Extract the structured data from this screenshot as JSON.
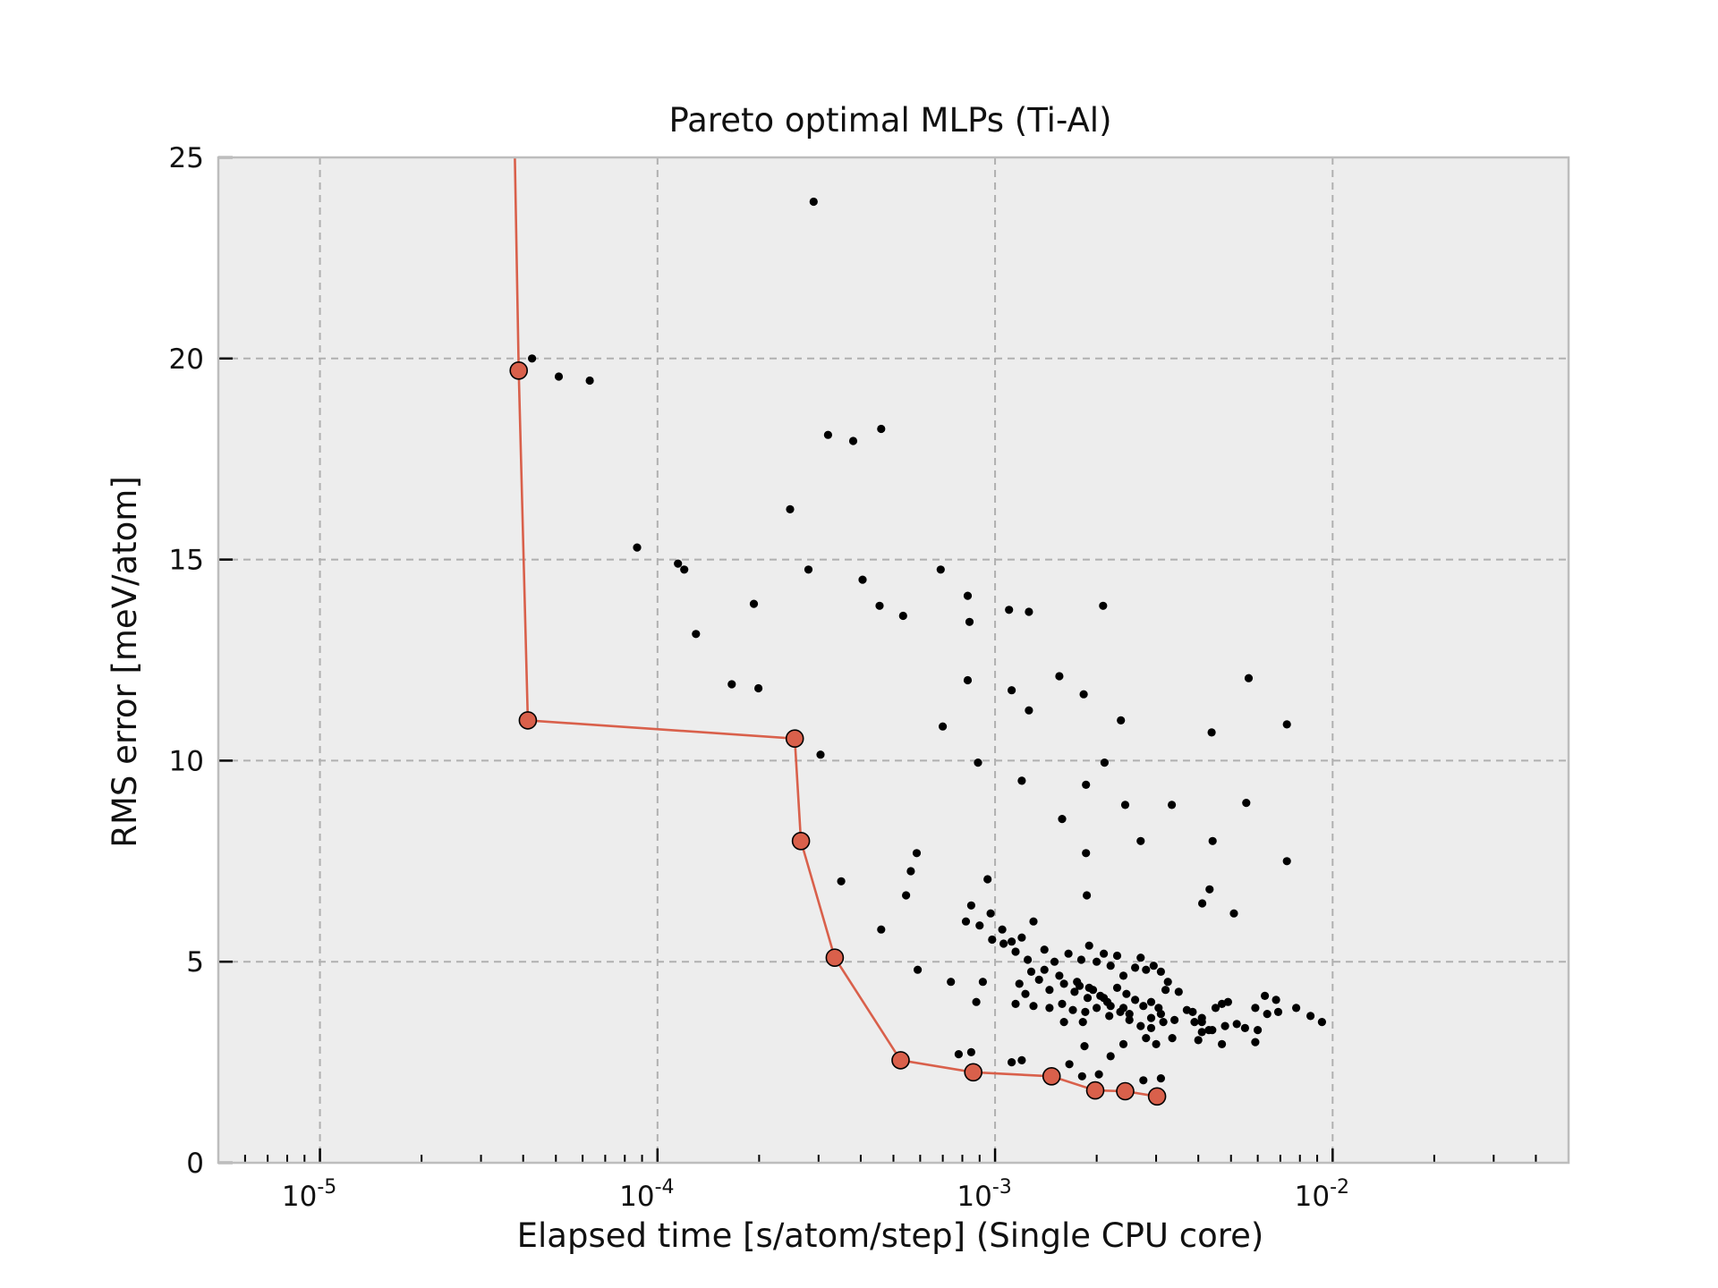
{
  "chart_data": {
    "type": "scatter",
    "title": "Pareto optimal MLPs (Ti-Al)",
    "xlabel": "Elapsed time [s/atom/step] (Single CPU core)",
    "ylabel": "RMS error [meV/atom]",
    "x_scale": "log",
    "xlim": [
      5e-06,
      0.05
    ],
    "ylim": [
      0,
      25
    ],
    "grid": true,
    "x_ticks": [
      {
        "value": 1e-05,
        "base": "10",
        "exp": "-5"
      },
      {
        "value": 0.0001,
        "base": "10",
        "exp": "-4"
      },
      {
        "value": 0.001,
        "base": "10",
        "exp": "-3"
      },
      {
        "value": 0.01,
        "base": "10",
        "exp": "-2"
      }
    ],
    "y_ticks": [
      {
        "value": 0,
        "label": "0"
      },
      {
        "value": 5,
        "label": "5"
      },
      {
        "value": 10,
        "label": "10"
      },
      {
        "value": 15,
        "label": "15"
      },
      {
        "value": 20,
        "label": "20"
      },
      {
        "value": 25,
        "label": "25"
      }
    ],
    "colors": {
      "pareto": "#d9604b",
      "points": "#000000",
      "plot_bg": "#ededed",
      "grid": "#b0b0b0",
      "frame": "#bdbdbd"
    },
    "pareto_series": {
      "x": [
        3.88e-05,
        4.13e-05,
        0.000255,
        0.000266,
        0.000335,
        0.000525,
        0.000862,
        0.00147,
        0.00198,
        0.00243,
        0.00302
      ],
      "y": [
        19.7,
        11.0,
        10.55,
        8.0,
        5.1,
        2.55,
        2.25,
        2.15,
        1.8,
        1.78,
        1.65
      ],
      "line_start": {
        "x": 3.78e-05,
        "y": 25
      }
    },
    "scatter_series": {
      "x": [
        0.00029,
        4.25e-05,
        5.1e-05,
        6.3e-05,
        0.00032,
        0.00038,
        0.00046,
        0.000247,
        8.7e-05,
        0.000115,
        0.00012,
        0.00028,
        0.000405,
        0.00069,
        0.00083,
        0.00013,
        0.000193,
        0.000455,
        0.000534,
        0.00084,
        0.0011,
        0.00126,
        0.00209,
        0.000166,
        0.000199,
        0.00083,
        0.00112,
        0.00126,
        0.00155,
        0.00183,
        0.00564,
        0.0007,
        0.00236,
        0.000304,
        0.00089,
        0.00211,
        0.00438,
        0.00732,
        0.0012,
        0.00186,
        0.00243,
        0.00334,
        0.00555,
        0.00158,
        0.00186,
        0.0027,
        0.00441,
        0.00732,
        0.000586,
        0.000563,
        0.00035,
        0.000545,
        0.00095,
        0.00187,
        0.00046,
        0.00432,
        0.00411,
        0.00059,
        0.00074,
        0.00088,
        0.00092,
        0.0016,
        0.00182,
        0.0025,
        0.0029,
        0.0034,
        0.0037,
        0.0041,
        0.0045,
        0.0047,
        0.0049,
        0.0059,
        0.0064,
        0.0069,
        0.0078,
        0.0086,
        0.0093,
        0.00085,
        0.00097,
        0.00105,
        0.00112,
        0.0012,
        0.0013,
        0.0014,
        0.0015,
        0.00165,
        0.0018,
        0.0019,
        0.002,
        0.0021,
        0.0022,
        0.0023,
        0.0024,
        0.0026,
        0.0027,
        0.0028,
        0.00295,
        0.0031,
        0.00325,
        0.0035,
        0.00118,
        0.00123,
        0.00128,
        0.00135,
        0.00145,
        0.0016,
        0.00172,
        0.00178,
        0.00188,
        0.00195,
        0.00205,
        0.00215,
        0.0023,
        0.00245,
        0.0026,
        0.00275,
        0.0029,
        0.00305,
        0.0032,
        0.00385,
        0.0041,
        0.0044,
        0.0048,
        0.0052,
        0.0055,
        0.006,
        0.0063,
        0.0068,
        0.00115,
        0.0013,
        0.00145,
        0.00158,
        0.0017,
        0.00185,
        0.002,
        0.00218,
        0.00235,
        0.0025,
        0.0027,
        0.0029,
        0.00315,
        0.00335,
        0.004,
        0.0043,
        0.0047,
        0.0051,
        0.00082,
        0.0009,
        0.00098,
        0.00106,
        0.00115,
        0.00125,
        0.0014,
        0.00155,
        0.00175,
        0.0019,
        0.0021,
        0.0022,
        0.0024,
        0.0031,
        0.0039,
        0.0041,
        0.0059,
        0.00078,
        0.00085,
        0.00112,
        0.0012,
        0.00166,
        0.00203,
        0.0022,
        0.0028,
        0.003,
        0.0031,
        0.00275,
        0.00181,
        0.00184,
        0.0024
      ],
      "y": [
        23.9,
        20.0,
        19.55,
        19.45,
        18.1,
        17.95,
        18.25,
        16.25,
        15.3,
        14.9,
        14.75,
        14.75,
        14.5,
        14.75,
        14.1,
        13.15,
        13.9,
        13.85,
        13.6,
        13.45,
        13.75,
        13.7,
        13.85,
        11.9,
        11.8,
        12.0,
        11.75,
        11.25,
        12.1,
        11.65,
        12.05,
        10.85,
        11.0,
        10.15,
        9.95,
        9.95,
        10.7,
        10.9,
        9.5,
        9.4,
        8.9,
        8.9,
        8.95,
        8.55,
        7.7,
        8.0,
        8.0,
        7.5,
        7.7,
        7.25,
        7.0,
        6.65,
        7.05,
        6.65,
        5.8,
        6.8,
        6.45,
        4.8,
        4.5,
        4.0,
        4.5,
        3.5,
        3.5,
        3.7,
        3.6,
        3.55,
        3.8,
        3.6,
        3.85,
        3.95,
        4.0,
        3.85,
        3.7,
        3.75,
        3.85,
        3.65,
        3.5,
        6.4,
        6.2,
        5.8,
        5.5,
        5.6,
        6.0,
        5.3,
        5.0,
        5.2,
        5.05,
        5.4,
        5.0,
        5.2,
        4.9,
        5.15,
        4.65,
        4.85,
        5.1,
        4.8,
        4.9,
        4.75,
        4.5,
        4.25,
        4.45,
        4.2,
        4.75,
        4.55,
        4.3,
        4.45,
        4.25,
        4.4,
        4.1,
        4.3,
        4.15,
        4.0,
        4.35,
        4.2,
        4.05,
        3.9,
        4.0,
        3.85,
        4.3,
        3.75,
        3.5,
        3.3,
        3.4,
        3.45,
        3.35,
        3.3,
        4.15,
        4.05,
        3.95,
        3.9,
        3.85,
        3.95,
        3.8,
        3.75,
        3.85,
        3.65,
        3.75,
        3.55,
        3.4,
        3.35,
        3.5,
        3.1,
        3.05,
        3.3,
        2.95,
        6.2,
        6.0,
        5.9,
        5.55,
        5.45,
        5.25,
        5.05,
        4.8,
        4.65,
        4.5,
        4.35,
        4.1,
        3.9,
        3.85,
        3.7,
        3.5,
        3.25,
        3.0,
        2.7,
        2.75,
        2.5,
        2.55,
        2.45,
        2.2,
        2.65,
        3.1,
        2.95,
        2.1,
        2.05,
        2.15,
        2.9,
        2.95
      ]
    }
  }
}
